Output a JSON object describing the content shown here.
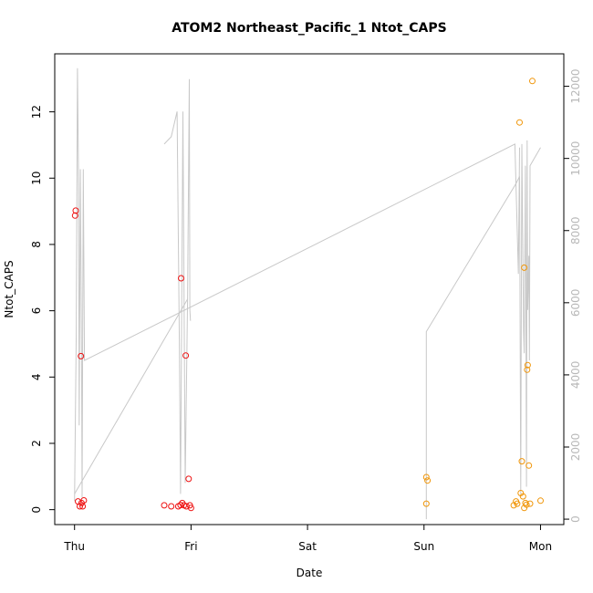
{
  "chart_data": {
    "type": "scatter",
    "title": "ATOM2 Northeast_Pacific_1 Ntot_CAPS",
    "xlabel": "Date",
    "ylabel": "Ntot_CAPS",
    "x_ticks": [
      "Thu",
      "Fri",
      "Sat",
      "Sun",
      "Mon"
    ],
    "x_range_days": [
      -0.17,
      4.2
    ],
    "y_left": {
      "ticks": [
        0,
        2,
        4,
        6,
        8,
        10,
        12
      ],
      "range": [
        -0.45,
        13.75
      ]
    },
    "y_right": {
      "ticks": [
        0,
        2000,
        4000,
        6000,
        8000,
        10000,
        12000
      ],
      "range": [
        -150,
        12900
      ]
    },
    "line_color": "#c8c8c8",
    "series": [
      {
        "color": "#ee1111",
        "marker": "open-circle",
        "points": [
          [
            0.01,
            9.02
          ],
          [
            0.005,
            8.87
          ],
          [
            0.03,
            0.25
          ],
          [
            0.045,
            0.1
          ],
          [
            0.06,
            0.2
          ],
          [
            0.055,
            4.63
          ],
          [
            0.07,
            0.1
          ],
          [
            0.08,
            0.28
          ],
          [
            0.77,
            0.13
          ],
          [
            0.83,
            0.1
          ],
          [
            0.89,
            0.1
          ],
          [
            0.91,
            0.14
          ],
          [
            0.915,
            6.98
          ],
          [
            0.925,
            0.2
          ],
          [
            0.94,
            0.13
          ],
          [
            0.955,
            4.65
          ],
          [
            0.96,
            0.1
          ],
          [
            0.98,
            0.93
          ],
          [
            0.99,
            0.13
          ],
          [
            1.0,
            0.05
          ]
        ]
      },
      {
        "color": "#f0960a",
        "marker": "open-circle",
        "points": [
          [
            3.02,
            0.98
          ],
          [
            3.03,
            0.88
          ],
          [
            3.02,
            0.18
          ],
          [
            3.77,
            0.13
          ],
          [
            3.79,
            0.25
          ],
          [
            3.8,
            0.18
          ],
          [
            3.82,
            11.68
          ],
          [
            3.83,
            0.5
          ],
          [
            3.84,
            1.46
          ],
          [
            3.85,
            0.4
          ],
          [
            3.86,
            7.3
          ],
          [
            3.86,
            0.05
          ],
          [
            3.87,
            0.2
          ],
          [
            3.88,
            0.15
          ],
          [
            3.89,
            4.36
          ],
          [
            3.885,
            4.22
          ],
          [
            3.9,
            1.33
          ],
          [
            3.91,
            0.18
          ],
          [
            3.93,
            12.93
          ],
          [
            4.0,
            0.27
          ]
        ]
      }
    ],
    "lines": [
      [
        [
          0.0,
          500
        ],
        [
          0.015,
          5200
        ],
        [
          0.025,
          12500
        ],
        [
          0.035,
          9200
        ],
        [
          0.04,
          2600
        ],
        [
          0.05,
          9700
        ],
        [
          0.06,
          4400
        ],
        [
          0.065,
          600
        ],
        [
          0.075,
          9700
        ],
        [
          0.085,
          4400
        ],
        [
          3.78,
          10400
        ],
        [
          3.81,
          6800
        ],
        [
          3.82,
          10300
        ]
      ],
      [
        [
          0.0,
          700
        ],
        [
          0.97,
          6100
        ],
        [
          0.985,
          12200
        ],
        [
          0.99,
          5800
        ],
        [
          0.995,
          5500
        ]
      ],
      [
        [
          0.77,
          10400
        ],
        [
          0.83,
          10600
        ],
        [
          0.88,
          11300
        ],
        [
          0.9,
          4900
        ],
        [
          0.91,
          700
        ],
        [
          0.93,
          11300
        ],
        [
          0.95,
          1000
        ],
        [
          0.97,
          6100
        ]
      ],
      [
        [
          3.02,
          0
        ],
        [
          3.02,
          5200
        ],
        [
          3.79,
          9300
        ],
        [
          3.82,
          9500
        ],
        [
          3.83,
          700
        ],
        [
          3.84,
          10400
        ],
        [
          3.855,
          5200
        ],
        [
          3.86,
          4600
        ],
        [
          3.87,
          9800
        ],
        [
          3.88,
          900
        ],
        [
          3.885,
          10500
        ],
        [
          3.89,
          5800
        ],
        [
          3.9,
          7300
        ],
        [
          3.905,
          4400
        ],
        [
          3.91,
          9800
        ],
        [
          4.0,
          10300
        ]
      ]
    ]
  }
}
